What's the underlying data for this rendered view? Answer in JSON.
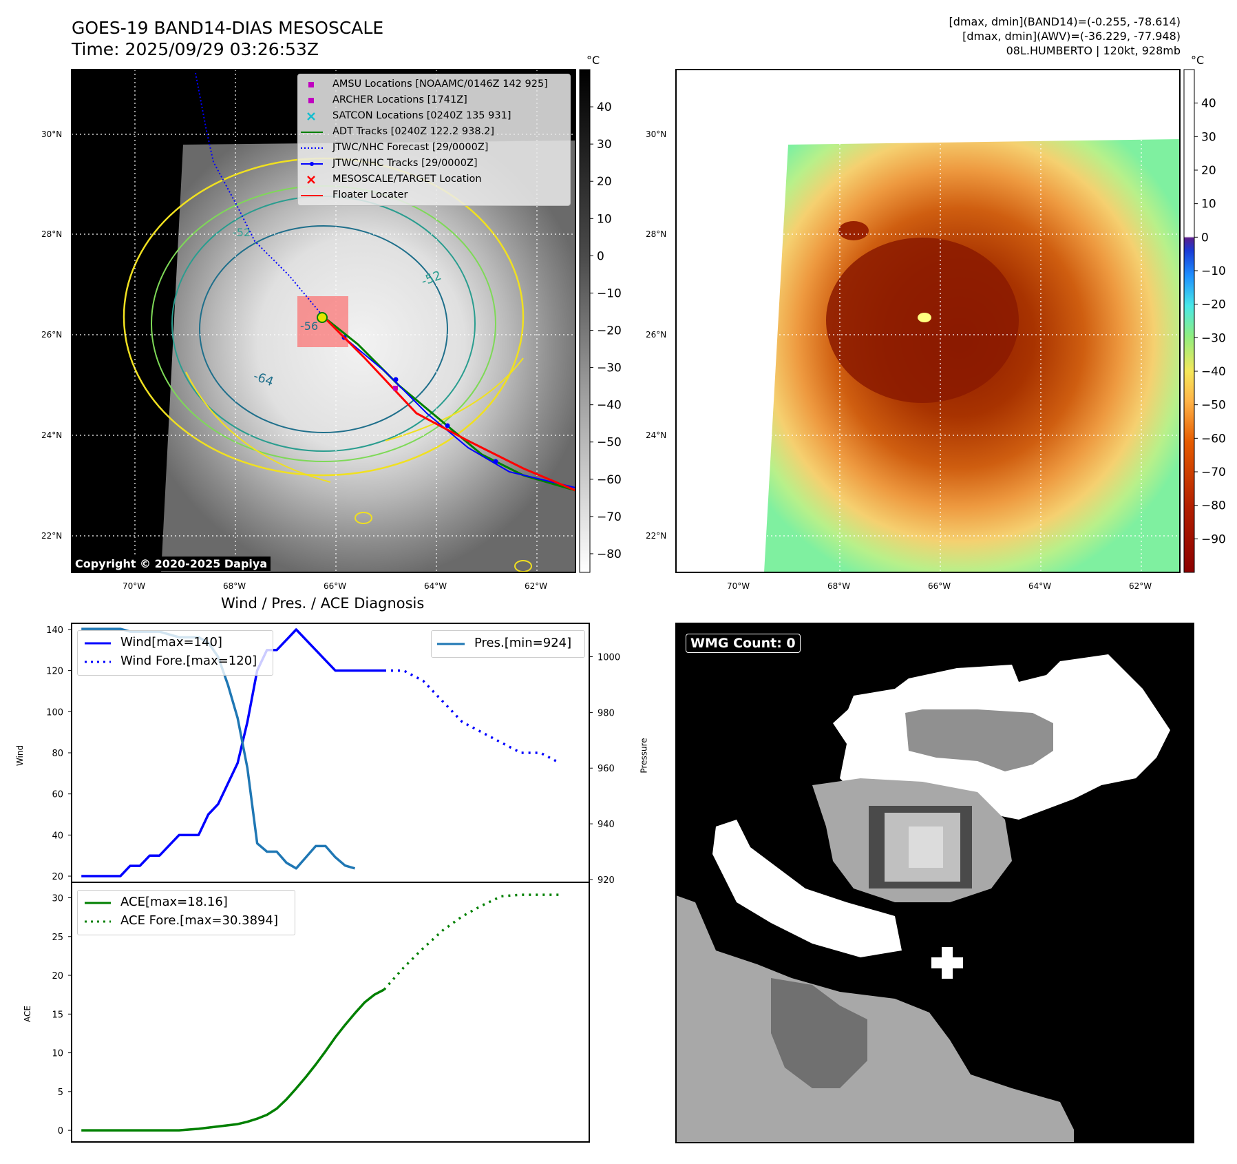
{
  "header": {
    "title_line1": "GOES-19 BAND14-DIAS MESOSCALE",
    "title_line2": "Time: 2025/09/29 03:26:53Z",
    "info_line1": "[dmax, dmin](BAND14)=(-0.255, -78.614)",
    "info_line2": "[dmax, dmin](AWV)=(-36.229, -77.948)",
    "info_line3": "08L.HUMBERTO | 120kt, 928mb"
  },
  "map_panels": {
    "lat_labels": [
      "30°N",
      "28°N",
      "26°N",
      "24°N",
      "22°N"
    ],
    "lon_labels": [
      "70°W",
      "68°W",
      "66°W",
      "64°W",
      "62°W"
    ],
    "copyright": "Copyright © 2020-2025 Dapiya",
    "contour_labels": [
      "-64",
      "-52",
      "-56",
      "-52"
    ]
  },
  "colorbar_left": {
    "unit": "°C",
    "ticks": [
      "40",
      "30",
      "20",
      "10",
      "0",
      "−10",
      "−20",
      "−30",
      "−40",
      "−50",
      "−60",
      "−70",
      "−80"
    ],
    "range": [
      -85,
      50
    ]
  },
  "colorbar_right": {
    "unit": "°C",
    "ticks": [
      "40",
      "30",
      "20",
      "10",
      "0",
      "−10",
      "−20",
      "−30",
      "−40",
      "−50",
      "−60",
      "−70",
      "−80",
      "−90"
    ],
    "range": [
      -100,
      50
    ]
  },
  "legend_map": {
    "items": [
      {
        "label": "AMSU Locations [NOAAMC/0146Z 142 925]",
        "color": "#c000c0",
        "marker": "square"
      },
      {
        "label": "ARCHER Locations [1741Z]",
        "color": "#c000c0",
        "marker": "square"
      },
      {
        "label": "SATCON Locations [0240Z 135 931]",
        "color": "#17becf",
        "marker": "x"
      },
      {
        "label": "ADT Tracks [0240Z 122.2 938.2]",
        "color": "#008000",
        "marker": "line"
      },
      {
        "label": "JTWC/NHC Forecast [29/0000Z]",
        "color": "#0000ff",
        "marker": "dotted"
      },
      {
        "label": "JTWC/NHC Tracks [29/0000Z]",
        "color": "#0000ff",
        "marker": "line-dot"
      },
      {
        "label": "MESOSCALE/TARGET Location",
        "color": "#ff0000",
        "marker": "x"
      },
      {
        "label": "Floater Locater",
        "color": "#ff0000",
        "marker": "line"
      }
    ]
  },
  "wmg": {
    "label": "WMG Count: 0"
  },
  "diagnosis": {
    "title": "Wind / Pres. / ACE Diagnosis",
    "wind_ylabel": "Wind",
    "pres_ylabel": "Pressure",
    "ace_ylabel": "ACE",
    "wind_ticks": [
      "140",
      "120",
      "100",
      "80",
      "60",
      "40",
      "20"
    ],
    "pres_ticks": [
      "1000",
      "980",
      "960",
      "940",
      "920"
    ],
    "ace_ticks": [
      "30",
      "25",
      "20",
      "15",
      "10",
      "5",
      "0"
    ],
    "legend_wind": "Wind[max=140]",
    "legend_wind_fore": "Wind Fore.[max=120]",
    "legend_pres": "Pres.[min=924]",
    "legend_ace": "ACE[max=18.16]",
    "legend_ace_fore": "ACE Fore.[max=30.3894]"
  },
  "chart_data": [
    {
      "type": "line",
      "title": "Wind / Pres. / ACE Diagnosis",
      "ylabel": "Wind",
      "ylim": [
        17,
        143
      ],
      "xlim": [
        -1,
        52
      ],
      "series": [
        {
          "name": "Wind[max=140]",
          "color": "#0000ff",
          "style": "solid",
          "x": [
            0,
            1,
            2,
            3,
            4,
            5,
            6,
            7,
            8,
            9,
            10,
            11,
            12,
            13,
            14,
            15,
            16,
            17,
            18,
            19,
            20,
            21,
            22,
            23,
            24,
            25,
            26,
            27,
            28,
            29,
            30,
            31
          ],
          "values": [
            20,
            20,
            20,
            20,
            20,
            25,
            25,
            30,
            30,
            35,
            40,
            40,
            40,
            50,
            55,
            65,
            75,
            95,
            120,
            130,
            130,
            135,
            140,
            135,
            130,
            125,
            120,
            120,
            120,
            120,
            120,
            120
          ]
        },
        {
          "name": "Wind Fore.[max=120]",
          "color": "#0000ff",
          "style": "dotted",
          "x": [
            31,
            33,
            35,
            37,
            39,
            41,
            43,
            45,
            47,
            49
          ],
          "values": [
            120,
            120,
            115,
            105,
            95,
            90,
            85,
            80,
            80,
            75
          ]
        }
      ]
    },
    {
      "type": "line",
      "ylabel": "Pressure",
      "ylim": [
        919,
        1012
      ],
      "xlim": [
        -1,
        52
      ],
      "series": [
        {
          "name": "Pres.[min=924]",
          "color": "#1f77b4",
          "style": "solid",
          "x": [
            0,
            1,
            2,
            3,
            4,
            5,
            6,
            7,
            8,
            9,
            10,
            11,
            12,
            13,
            14,
            15,
            16,
            17,
            18,
            19,
            20,
            21,
            22,
            23,
            24,
            25,
            26,
            27,
            28
          ],
          "values": [
            1010,
            1010,
            1010,
            1010,
            1010,
            1009,
            1009,
            1009,
            1009,
            1008,
            1007,
            1007,
            1007,
            1005,
            1000,
            990,
            978,
            960,
            933,
            930,
            930,
            926,
            924,
            928,
            932,
            932,
            928,
            925,
            924
          ]
        }
      ]
    },
    {
      "type": "line",
      "ylabel": "ACE",
      "ylim": [
        -1.5,
        32
      ],
      "xlim": [
        -1,
        52
      ],
      "series": [
        {
          "name": "ACE[max=18.16]",
          "color": "#008000",
          "style": "solid",
          "x": [
            0,
            2,
            4,
            6,
            8,
            10,
            12,
            14,
            16,
            17,
            18,
            19,
            20,
            21,
            22,
            23,
            24,
            25,
            26,
            27,
            28,
            29,
            30,
            31
          ],
          "values": [
            0,
            0,
            0,
            0,
            0,
            0,
            0.2,
            0.5,
            0.8,
            1.1,
            1.5,
            2,
            2.8,
            4,
            5.4,
            6.9,
            8.5,
            10.2,
            12,
            13.6,
            15.1,
            16.5,
            17.5,
            18.16
          ]
        },
        {
          "name": "ACE Fore.[max=30.3894]",
          "color": "#008000",
          "style": "dotted",
          "x": [
            31,
            33,
            35,
            37,
            39,
            41,
            43,
            45,
            47,
            49
          ],
          "values": [
            18.16,
            21,
            23.5,
            25.8,
            27.6,
            29,
            30.2,
            30.39,
            30.39,
            30.39
          ]
        }
      ]
    }
  ]
}
